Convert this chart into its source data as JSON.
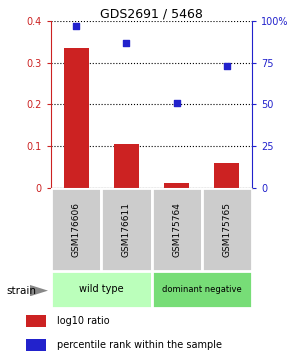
{
  "title": "GDS2691 / 5468",
  "samples": [
    "GSM176606",
    "GSM176611",
    "GSM175764",
    "GSM175765"
  ],
  "log10_ratio": [
    0.335,
    0.105,
    0.01,
    0.058
  ],
  "percentile_rank_pct": [
    97,
    87,
    51,
    73
  ],
  "ylim_left": [
    0,
    0.4
  ],
  "ylim_right": [
    0,
    100
  ],
  "yticks_left": [
    0,
    0.1,
    0.2,
    0.3,
    0.4
  ],
  "yticks_right": [
    0,
    25,
    50,
    75,
    100
  ],
  "ytick_labels_left": [
    "0",
    "0.1",
    "0.2",
    "0.3",
    "0.4"
  ],
  "ytick_labels_right": [
    "0",
    "25",
    "50",
    "75",
    "100%"
  ],
  "bar_color": "#cc2222",
  "dot_color": "#2222cc",
  "bg_color": "#ffffff",
  "left_axis_color": "#cc2222",
  "right_axis_color": "#2222cc",
  "groups": [
    {
      "label": "wild type",
      "samples": [
        0,
        1
      ],
      "color": "#bbffbb"
    },
    {
      "label": "dominant negative",
      "samples": [
        2,
        3
      ],
      "color": "#77dd77"
    }
  ],
  "strain_label": "strain",
  "legend_items": [
    {
      "color": "#cc2222",
      "label": "log10 ratio"
    },
    {
      "color": "#2222cc",
      "label": "percentile rank within the sample"
    }
  ],
  "bar_width": 0.5,
  "dot_size": 25
}
